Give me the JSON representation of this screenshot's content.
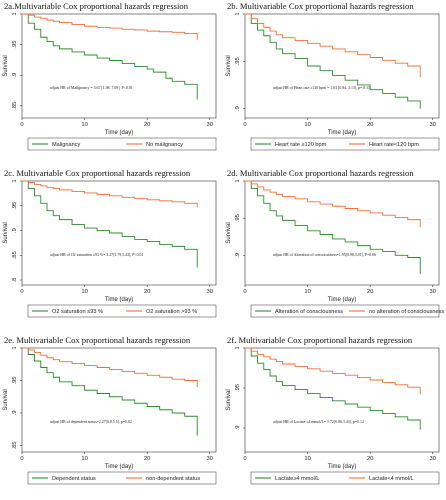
{
  "colors": {
    "group1": "#2e8b2e",
    "group2": "#f0703a"
  },
  "chart_data": [
    {
      "type": "line",
      "title": "2a.Multivariable Cox proportional hazards regression",
      "ylabel": "Survival",
      "xlabel": "Time (day)",
      "ylim": [
        0.83,
        1.0
      ],
      "yticks": [
        1,
        0.95,
        0.9,
        0.85
      ],
      "ytick_labels": [
        "1",
        ".95",
        ".9",
        ".85"
      ],
      "xlim": [
        0,
        31
      ],
      "xticks": [
        0,
        10,
        20,
        30
      ],
      "annotation": "adjust HR of Malignancy = 3.67 [1.98, 7.09], P<0.01",
      "series": [
        {
          "name": "Malignancy",
          "color": "#2e8b2e",
          "x": [
            0,
            1,
            2,
            3,
            4,
            5,
            6,
            8,
            10,
            12,
            14,
            16,
            18,
            20,
            21,
            23,
            24,
            26,
            28,
            28
          ],
          "y": [
            1,
            0.985,
            0.975,
            0.962,
            0.955,
            0.948,
            0.943,
            0.938,
            0.933,
            0.928,
            0.924,
            0.919,
            0.914,
            0.91,
            0.905,
            0.895,
            0.89,
            0.885,
            0.88,
            0.86
          ]
        },
        {
          "name": "No malignancy",
          "color": "#f0703a",
          "x": [
            0,
            1,
            2,
            3,
            4,
            5,
            6,
            8,
            10,
            12,
            14,
            16,
            18,
            20,
            22,
            24,
            26,
            28,
            28
          ],
          "y": [
            1,
            0.998,
            0.995,
            0.993,
            0.99,
            0.988,
            0.986,
            0.983,
            0.98,
            0.978,
            0.977,
            0.975,
            0.974,
            0.972,
            0.971,
            0.97,
            0.968,
            0.965,
            0.958
          ]
        }
      ]
    },
    {
      "type": "line",
      "title": "2b. Multivariable Cox proportional hazards regression",
      "ylabel": "Survival",
      "xlabel": "Time (day)",
      "ylim": [
        0.89,
        1.0
      ],
      "yticks": [
        1,
        0.95,
        0.9
      ],
      "ytick_labels": [
        "1",
        ".95",
        ".9"
      ],
      "xlim": [
        0,
        31
      ],
      "xticks": [
        0,
        10,
        20,
        30
      ],
      "annotation": "adjust HR of Heart rate ≥120 bpm = 1.63 [0.84, 3.13], p= 0.15",
      "series": [
        {
          "name": "Heart rate ≥120 bpm",
          "color": "#2e8b2e",
          "x": [
            0,
            1,
            2,
            3,
            4,
            5,
            6,
            8,
            10,
            12,
            14,
            16,
            18,
            20,
            22,
            24,
            26,
            28,
            28
          ],
          "y": [
            1,
            0.99,
            0.983,
            0.977,
            0.97,
            0.963,
            0.958,
            0.953,
            0.945,
            0.94,
            0.935,
            0.93,
            0.925,
            0.92,
            0.916,
            0.912,
            0.908,
            0.905,
            0.9
          ]
        },
        {
          "name": "Heart rate<120 bpm",
          "color": "#f0703a",
          "x": [
            0,
            1,
            2,
            3,
            4,
            5,
            6,
            8,
            10,
            12,
            14,
            16,
            18,
            20,
            22,
            24,
            26,
            28,
            28
          ],
          "y": [
            1,
            0.995,
            0.99,
            0.986,
            0.982,
            0.978,
            0.975,
            0.972,
            0.969,
            0.966,
            0.963,
            0.96,
            0.957,
            0.954,
            0.951,
            0.948,
            0.945,
            0.94,
            0.933
          ]
        }
      ]
    },
    {
      "type": "line",
      "title": "2c. Multivariable Cox proportional hazards regression",
      "ylabel": "Survival",
      "xlabel": "Time (day)",
      "ylim": [
        0.79,
        1.0
      ],
      "yticks": [
        1,
        0.95,
        0.9,
        0.85,
        0.8
      ],
      "ytick_labels": [
        "1",
        ".95",
        ".9",
        ".85",
        ".8"
      ],
      "xlim": [
        0,
        31
      ],
      "xticks": [
        0,
        10,
        20,
        30
      ],
      "annotation": "adjust HR of O2 saturation ≤93 %= 3.27[1.79,5.43], P<0.01",
      "series": [
        {
          "name": "O2 saturation ≤93 %",
          "color": "#2e8b2e",
          "x": [
            0,
            1,
            2,
            3,
            4,
            5,
            6,
            8,
            10,
            12,
            14,
            16,
            18,
            20,
            22,
            24,
            26,
            28,
            28
          ],
          "y": [
            1,
            0.985,
            0.97,
            0.955,
            0.94,
            0.93,
            0.922,
            0.912,
            0.905,
            0.9,
            0.895,
            0.888,
            0.882,
            0.878,
            0.872,
            0.868,
            0.862,
            0.855,
            0.825
          ]
        },
        {
          "name": "O2 saturation >93 %",
          "color": "#f0703a",
          "x": [
            0,
            1,
            2,
            3,
            4,
            5,
            6,
            8,
            10,
            12,
            14,
            16,
            18,
            20,
            22,
            24,
            26,
            28,
            28
          ],
          "y": [
            1,
            0.997,
            0.993,
            0.99,
            0.987,
            0.985,
            0.982,
            0.979,
            0.976,
            0.973,
            0.97,
            0.967,
            0.965,
            0.962,
            0.96,
            0.958,
            0.955,
            0.952,
            0.947
          ]
        }
      ]
    },
    {
      "type": "line",
      "title": "2d. Multivariable Cox proportional hazards regression",
      "ylabel": "Survival",
      "xlabel": "Time (day)",
      "ylim": [
        0.86,
        1.0
      ],
      "yticks": [
        1,
        0.95,
        0.9
      ],
      "ytick_labels": [
        "1",
        ".95",
        ".9"
      ],
      "xlim": [
        0,
        31
      ],
      "xticks": [
        0,
        10,
        20,
        30
      ],
      "annotation": "adjust HR of Alteration of consciousness=1.95[0.98,3.81], P=0.06",
      "series": [
        {
          "name": "Alteration of consciousness",
          "color": "#2e8b2e",
          "x": [
            0,
            1,
            2,
            3,
            4,
            5,
            6,
            8,
            10,
            12,
            14,
            16,
            18,
            20,
            22,
            24,
            26,
            28,
            28
          ],
          "y": [
            1,
            0.99,
            0.98,
            0.97,
            0.96,
            0.953,
            0.947,
            0.94,
            0.933,
            0.928,
            0.922,
            0.918,
            0.913,
            0.908,
            0.905,
            0.9,
            0.897,
            0.893,
            0.875
          ]
        },
        {
          "name": "no alteration of consciousness",
          "color": "#f0703a",
          "x": [
            0,
            1,
            2,
            3,
            4,
            5,
            6,
            8,
            10,
            12,
            14,
            16,
            18,
            20,
            22,
            24,
            26,
            28,
            28
          ],
          "y": [
            1,
            0.996,
            0.992,
            0.988,
            0.985,
            0.982,
            0.979,
            0.976,
            0.972,
            0.969,
            0.966,
            0.963,
            0.96,
            0.957,
            0.954,
            0.951,
            0.948,
            0.944,
            0.938
          ]
        }
      ]
    },
    {
      "type": "line",
      "title": "2e. Multivariable Cox proportional hazards regression",
      "ylabel": "Survival",
      "xlabel": "Time (day)",
      "ylim": [
        0.84,
        1.0
      ],
      "yticks": [
        1,
        0.95,
        0.9,
        0.85
      ],
      "ytick_labels": [
        "1",
        ".95",
        ".9",
        ".85"
      ],
      "xlim": [
        0,
        31
      ],
      "xticks": [
        0,
        10,
        20,
        30
      ],
      "annotation": "adjust HR of dependent status=2.27[0.8,5.5], p=0.02",
      "series": [
        {
          "name": "Dependent status",
          "color": "#2e8b2e",
          "x": [
            0,
            1,
            2,
            3,
            4,
            5,
            6,
            8,
            10,
            12,
            14,
            16,
            18,
            20,
            22,
            24,
            26,
            28,
            28
          ],
          "y": [
            1,
            0.99,
            0.98,
            0.97,
            0.962,
            0.955,
            0.948,
            0.942,
            0.935,
            0.93,
            0.925,
            0.92,
            0.915,
            0.91,
            0.905,
            0.9,
            0.895,
            0.889,
            0.865
          ]
        },
        {
          "name": "non-dependent status",
          "color": "#f0703a",
          "x": [
            0,
            1,
            2,
            3,
            4,
            5,
            6,
            8,
            10,
            12,
            14,
            16,
            18,
            20,
            22,
            24,
            26,
            28,
            28
          ],
          "y": [
            1,
            0.997,
            0.993,
            0.989,
            0.985,
            0.982,
            0.979,
            0.976,
            0.973,
            0.97,
            0.967,
            0.964,
            0.961,
            0.958,
            0.955,
            0.952,
            0.95,
            0.946,
            0.94
          ]
        }
      ]
    },
    {
      "type": "line",
      "title": "2f. Multivariable Cox proportional hazards regression",
      "ylabel": "Survival",
      "xlabel": "Time (day)",
      "ylim": [
        0.87,
        1.0
      ],
      "yticks": [
        1,
        0.95,
        0.9
      ],
      "ytick_labels": [
        "1",
        ".95",
        ".9"
      ],
      "xlim": [
        0,
        31
      ],
      "xticks": [
        0,
        10,
        20,
        30
      ],
      "annotation": "adjust HR of Lactate ≥4 mmol/L= 1.72[0.86,3.43], p=0.12",
      "series": [
        {
          "name": "Lactate≥4 mmol/L",
          "color": "#2e8b2e",
          "x": [
            0,
            1,
            2,
            3,
            4,
            5,
            6,
            8,
            10,
            12,
            14,
            16,
            18,
            20,
            22,
            24,
            26,
            28,
            28
          ],
          "y": [
            1,
            0.99,
            0.981,
            0.973,
            0.965,
            0.958,
            0.953,
            0.948,
            0.943,
            0.938,
            0.934,
            0.93,
            0.926,
            0.922,
            0.918,
            0.914,
            0.91,
            0.905,
            0.898
          ]
        },
        {
          "name": "Lactate<4 mmol/L",
          "color": "#f0703a",
          "x": [
            0,
            1,
            2,
            3,
            4,
            5,
            6,
            8,
            10,
            12,
            14,
            16,
            18,
            20,
            22,
            24,
            26,
            28,
            28
          ],
          "y": [
            1,
            0.996,
            0.992,
            0.989,
            0.986,
            0.983,
            0.98,
            0.977,
            0.974,
            0.971,
            0.968,
            0.966,
            0.963,
            0.96,
            0.957,
            0.954,
            0.951,
            0.948,
            0.942
          ]
        }
      ]
    }
  ]
}
